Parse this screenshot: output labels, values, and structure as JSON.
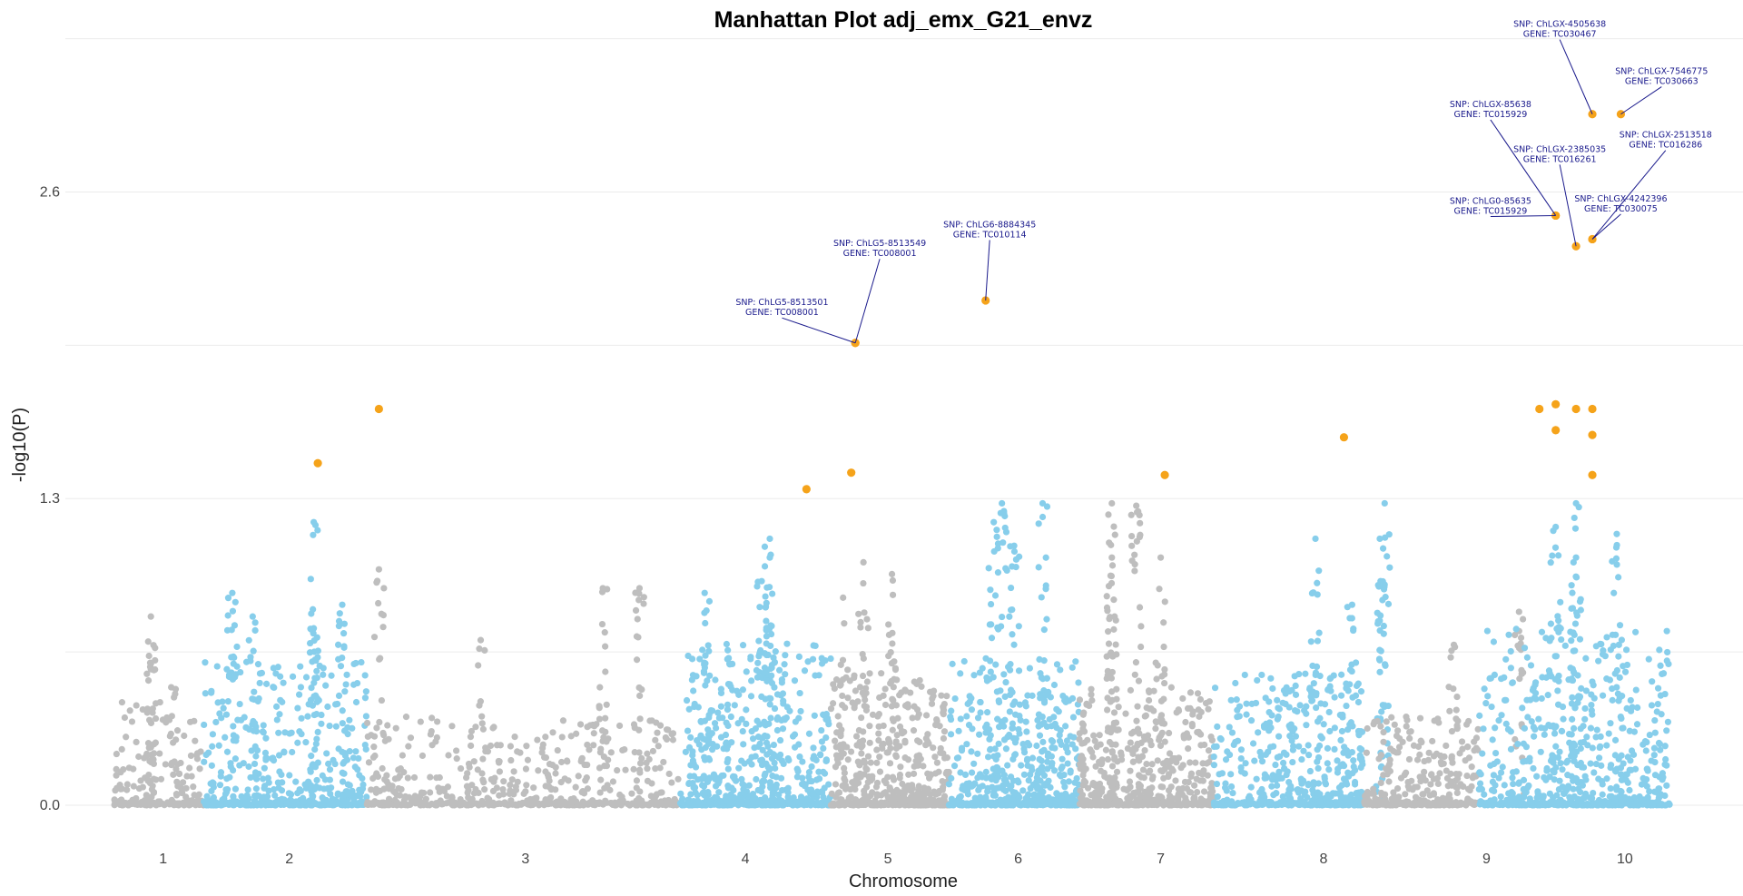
{
  "chart_data": {
    "type": "scatter",
    "title": "Manhattan Plot adj_emx_G21_envz",
    "xlabel": "Chromosome",
    "ylabel": "-log10(P)",
    "ylim": [
      -0.05,
      3.26
    ],
    "yticks": [
      0.0,
      1.3,
      2.6
    ],
    "grid": true,
    "legend": "none",
    "colors": {
      "odd_chromosome": "#bebebe",
      "even_chromosome": "#87ceeb",
      "highlight": "#f5a31a",
      "annotation": "#1a1a8c"
    },
    "chromosomes": [
      {
        "label": "1",
        "start": 0.0,
        "end": 2.2,
        "center": 1.2,
        "color": "odd_chromosome"
      },
      {
        "label": "2",
        "start": 2.2,
        "end": 6.2,
        "center": 4.3,
        "color": "even_chromosome"
      },
      {
        "label": "3",
        "start": 6.2,
        "end": 13.9,
        "center": 10.1,
        "color": "odd_chromosome"
      },
      {
        "label": "4",
        "start": 13.9,
        "end": 17.6,
        "center": 15.5,
        "color": "even_chromosome"
      },
      {
        "label": "5",
        "start": 17.6,
        "end": 20.5,
        "center": 19.0,
        "color": "odd_chromosome"
      },
      {
        "label": "6",
        "start": 20.5,
        "end": 23.7,
        "center": 22.2,
        "color": "even_chromosome"
      },
      {
        "label": "7",
        "start": 23.7,
        "end": 27.0,
        "center": 25.7,
        "color": "odd_chromosome"
      },
      {
        "label": "8",
        "start": 27.0,
        "end": 30.7,
        "center": 29.7,
        "color": "even_chromosome"
      },
      {
        "label": "9",
        "start": 30.7,
        "end": 33.5,
        "center": 33.7,
        "color": "odd_chromosome"
      },
      {
        "label": "10",
        "start": 33.5,
        "end": 38.2,
        "center": 37.1,
        "color": "even_chromosome"
      }
    ],
    "xlim": [
      -1.2,
      40.0
    ],
    "highlighted_points": [
      {
        "x": 5.0,
        "y": 1.45
      },
      {
        "x": 6.5,
        "y": 1.68
      },
      {
        "x": 17.0,
        "y": 1.34
      },
      {
        "x": 18.1,
        "y": 1.41
      },
      {
        "x": 25.8,
        "y": 1.4
      },
      {
        "x": 30.2,
        "y": 1.56
      },
      {
        "x": 35.0,
        "y": 1.68
      },
      {
        "x": 35.4,
        "y": 1.7
      },
      {
        "x": 35.4,
        "y": 1.59
      },
      {
        "x": 35.9,
        "y": 1.68
      },
      {
        "x": 36.3,
        "y": 1.68
      },
      {
        "x": 36.3,
        "y": 1.57
      },
      {
        "x": 36.3,
        "y": 1.4
      }
    ],
    "annotated_points": [
      {
        "x": 18.2,
        "y": 1.96,
        "snp": "SNP:  ChLG5-8513501",
        "gene": "GENE:  TC008001",
        "label_x": 16.4,
        "label_y": 2.12
      },
      {
        "x": 18.2,
        "y": 1.96,
        "snp": "SNP:  ChLG5-8513549",
        "gene": "GENE:  TC008001",
        "label_x": 18.8,
        "label_y": 2.37
      },
      {
        "x": 21.4,
        "y": 2.14,
        "snp": "SNP:  ChLG6-8884345",
        "gene": "GENE:  TC010114",
        "label_x": 21.5,
        "label_y": 2.45
      },
      {
        "x": 35.4,
        "y": 2.5,
        "snp": "SNP:  ChLG0-85635",
        "gene": "GENE:  TC015929",
        "label_x": 33.8,
        "label_y": 2.55
      },
      {
        "x": 35.4,
        "y": 2.5,
        "snp": "SNP:  ChLGX-85638",
        "gene": "GENE:  TC015929",
        "label_x": 33.8,
        "label_y": 2.96
      },
      {
        "x": 35.9,
        "y": 2.37,
        "snp": "SNP:  ChLGX-2385035",
        "gene": "GENE:  TC016261",
        "label_x": 35.5,
        "label_y": 2.77
      },
      {
        "x": 36.3,
        "y": 2.4,
        "snp": "SNP:  ChLGX-4242396",
        "gene": "GENE:  TC030075",
        "label_x": 37.0,
        "label_y": 2.56
      },
      {
        "x": 36.3,
        "y": 2.93,
        "snp": "SNP:  ChLGX-4505638",
        "gene": "GENE:  TC030467",
        "label_x": 35.5,
        "label_y": 3.3
      },
      {
        "x": 37.0,
        "y": 2.93,
        "snp": "SNP:  ChLGX-7546775",
        "gene": "GENE:  TC030663",
        "label_x": 38.0,
        "label_y": 3.1
      },
      {
        "x": 36.3,
        "y": 2.4,
        "snp": "SNP:  ChLGX-2513518",
        "gene": "GENE:  TC016286",
        "label_x": 38.1,
        "label_y": 2.83
      }
    ],
    "background_point_profile": [
      {
        "chrom": "1",
        "n": 150,
        "ymax_typical": 0.35,
        "peaks": [
          {
            "x": 0.9,
            "y": 0.8
          },
          {
            "x": 0.9,
            "y": 0.6
          },
          {
            "x": 1.4,
            "y": 0.5
          }
        ]
      },
      {
        "chrom": "2",
        "n": 400,
        "ymax_typical": 0.5,
        "peaks": [
          {
            "x": 4.9,
            "y": 1.2
          },
          {
            "x": 2.9,
            "y": 0.9
          },
          {
            "x": 3.4,
            "y": 0.8
          },
          {
            "x": 5.6,
            "y": 0.85
          },
          {
            "x": 4.9,
            "y": 0.75
          }
        ]
      },
      {
        "chrom": "3",
        "n": 420,
        "ymax_typical": 0.3,
        "peaks": [
          {
            "x": 6.5,
            "y": 1.0
          },
          {
            "x": 12.0,
            "y": 0.92
          },
          {
            "x": 12.9,
            "y": 0.92
          },
          {
            "x": 9.0,
            "y": 0.7
          }
        ]
      },
      {
        "chrom": "4",
        "n": 500,
        "ymax_typical": 0.55,
        "peaks": [
          {
            "x": 16.1,
            "y": 1.13
          },
          {
            "x": 16.1,
            "y": 1.05
          },
          {
            "x": 15.9,
            "y": 0.95
          },
          {
            "x": 14.5,
            "y": 0.9
          }
        ]
      },
      {
        "chrom": "5",
        "n": 420,
        "ymax_typical": 0.45,
        "peaks": [
          {
            "x": 18.4,
            "y": 1.03
          },
          {
            "x": 19.1,
            "y": 0.98
          },
          {
            "x": 17.9,
            "y": 0.88
          }
        ]
      },
      {
        "chrom": "6",
        "n": 450,
        "ymax_typical": 0.5,
        "peaks": [
          {
            "x": 21.8,
            "y": 1.28
          },
          {
            "x": 22.8,
            "y": 1.28
          },
          {
            "x": 21.6,
            "y": 1.2
          },
          {
            "x": 22.1,
            "y": 1.1
          }
        ]
      },
      {
        "chrom": "7",
        "n": 420,
        "ymax_typical": 0.4,
        "peaks": [
          {
            "x": 24.5,
            "y": 1.28
          },
          {
            "x": 25.1,
            "y": 1.27
          },
          {
            "x": 24.5,
            "y": 1.05
          },
          {
            "x": 25.7,
            "y": 1.05
          }
        ]
      },
      {
        "chrom": "8",
        "n": 430,
        "ymax_typical": 0.45,
        "peaks": [
          {
            "x": 29.5,
            "y": 1.13
          },
          {
            "x": 31.2,
            "y": 1.28
          },
          {
            "x": 30.4,
            "y": 0.85
          },
          {
            "x": 31.1,
            "y": 0.95
          }
        ]
      },
      {
        "chrom": "9",
        "n": 260,
        "ymax_typical": 0.3,
        "peaks": [
          {
            "x": 32.9,
            "y": 0.68
          },
          {
            "x": 34.5,
            "y": 0.82
          }
        ]
      },
      {
        "chrom": "10",
        "n": 520,
        "ymax_typical": 0.6,
        "peaks": [
          {
            "x": 35.9,
            "y": 1.28
          },
          {
            "x": 35.4,
            "y": 1.18
          },
          {
            "x": 36.9,
            "y": 1.15
          },
          {
            "x": 35.9,
            "y": 1.05
          }
        ]
      }
    ]
  }
}
